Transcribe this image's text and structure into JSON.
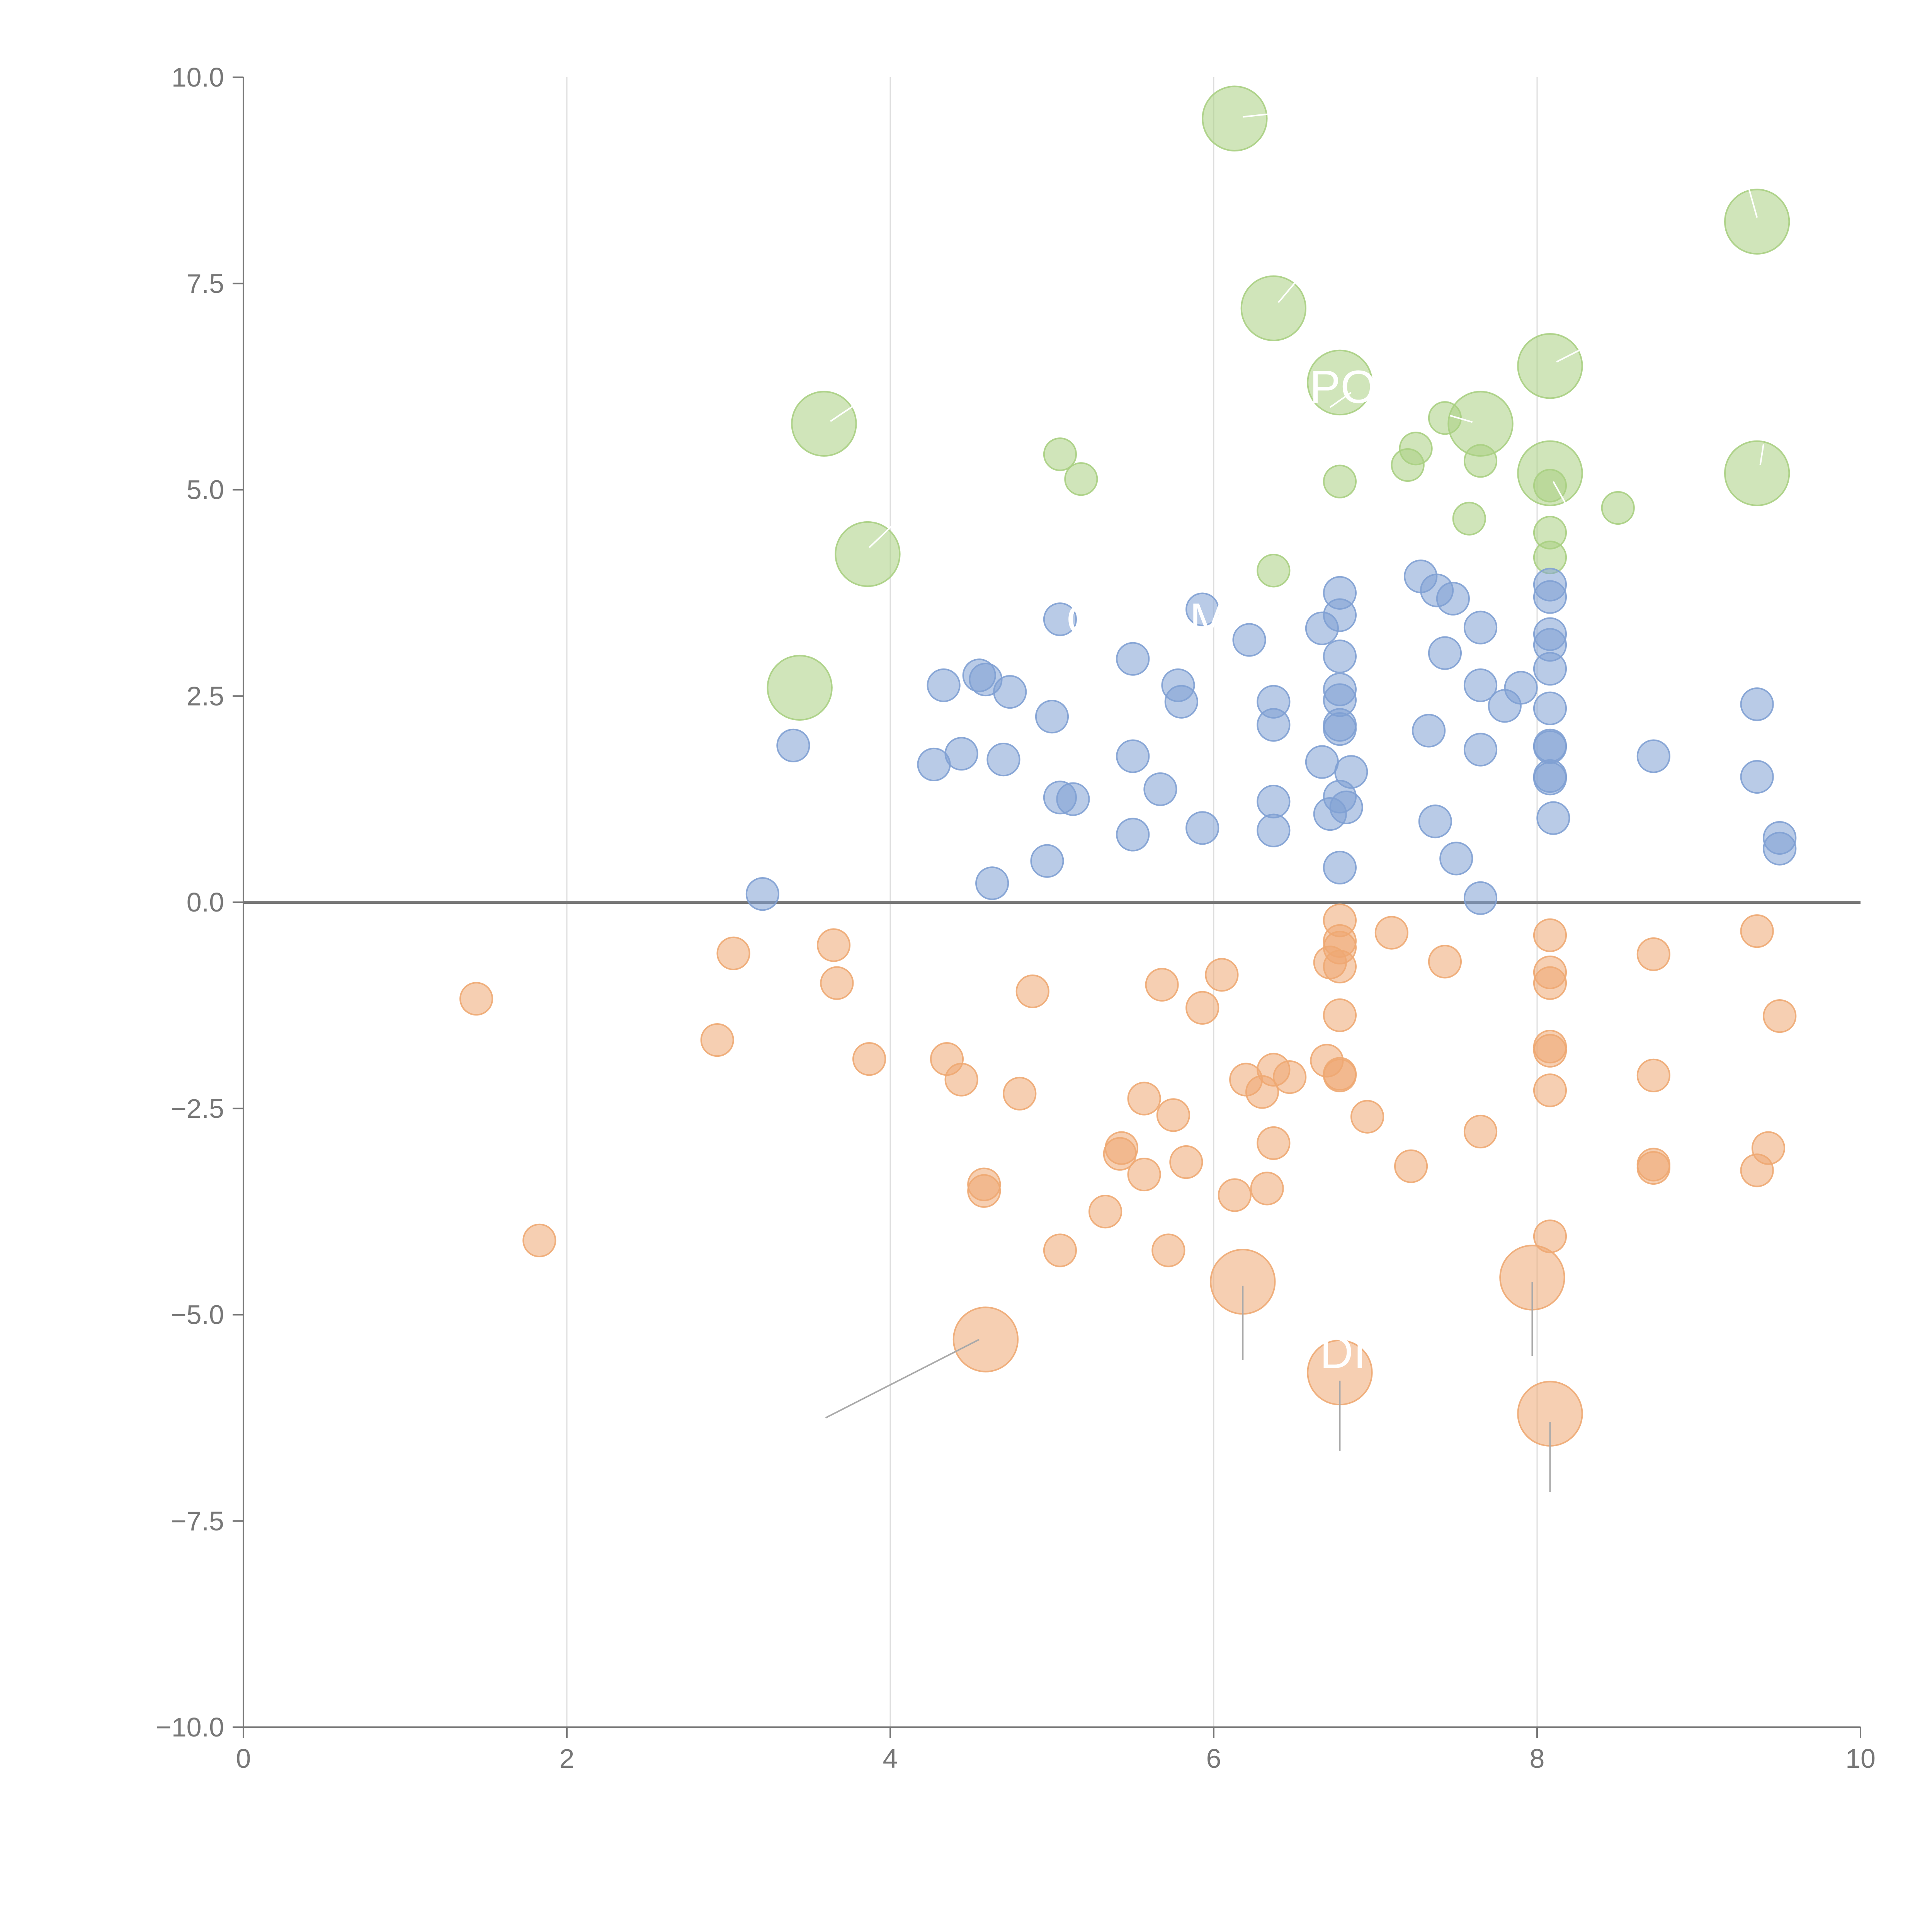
{
  "chart_data": {
    "type": "scatter",
    "title": "",
    "xlabel": "",
    "ylabel": "",
    "xlim": [
      0,
      10
    ],
    "ylim": [
      -10,
      10
    ],
    "x_ticks": [
      "0",
      "2",
      "4",
      "6",
      "8",
      "10"
    ],
    "y_ticks": [
      "10.0",
      "7.5",
      "5.0",
      "2.5",
      "0.0",
      "−2.5",
      "−5.0",
      "−7.5",
      "−10.0"
    ],
    "grid": "vertical",
    "reference_line_y": 0,
    "colors": {
      "green": "#a9cf82",
      "blue": "#7fa0d3",
      "orange": "#eea872"
    },
    "series": [
      {
        "color": "green",
        "points": [
          [
            6.13,
            9.5,
            1.6
          ],
          [
            9.36,
            8.25,
            1.6
          ],
          [
            6.37,
            7.2,
            1.6
          ],
          [
            8.08,
            6.5,
            1.6
          ],
          [
            6.78,
            6.3,
            1.6
          ],
          [
            7.65,
            5.8,
            1.6
          ],
          [
            3.59,
            5.8,
            1.6
          ],
          [
            8.08,
            5.2,
            1.6
          ],
          [
            9.36,
            5.2,
            1.6
          ],
          [
            3.86,
            4.22,
            1.6
          ],
          [
            3.44,
            2.6,
            1.6
          ],
          [
            7.43,
            5.87,
            0.8
          ],
          [
            7.25,
            5.5,
            0.8
          ],
          [
            7.2,
            5.3,
            0.8
          ],
          [
            5.05,
            5.43,
            0.8
          ],
          [
            5.18,
            5.13,
            0.8
          ],
          [
            6.78,
            5.1,
            0.8
          ],
          [
            7.65,
            5.35,
            0.8
          ],
          [
            8.08,
            5.05,
            0.8
          ],
          [
            8.5,
            4.78,
            0.8
          ],
          [
            7.58,
            4.65,
            0.8
          ],
          [
            8.08,
            4.48,
            0.8
          ],
          [
            8.08,
            4.18,
            0.8
          ],
          [
            6.37,
            4.02,
            0.8
          ]
        ]
      },
      {
        "color": "blue",
        "points": [
          [
            6.78,
            3.75,
            0.8
          ],
          [
            7.28,
            3.95,
            0.8
          ],
          [
            7.38,
            3.78,
            0.8
          ],
          [
            7.48,
            3.68,
            0.8
          ],
          [
            8.08,
            3.85,
            0.8
          ],
          [
            8.08,
            3.7,
            0.8
          ],
          [
            5.05,
            3.43,
            0.8
          ],
          [
            5.93,
            3.55,
            0.8
          ],
          [
            6.78,
            3.48,
            0.8
          ],
          [
            6.67,
            3.32,
            0.8
          ],
          [
            7.65,
            3.33,
            0.8
          ],
          [
            6.22,
            3.18,
            0.8
          ],
          [
            8.08,
            3.25,
            0.8
          ],
          [
            8.08,
            3.12,
            0.8
          ],
          [
            7.43,
            3.02,
            0.8
          ],
          [
            6.78,
            2.98,
            0.8
          ],
          [
            5.5,
            2.95,
            0.8
          ],
          [
            8.08,
            2.83,
            0.8
          ],
          [
            4.55,
            2.75,
            0.8
          ],
          [
            4.59,
            2.7,
            0.8
          ],
          [
            4.33,
            2.63,
            0.8
          ],
          [
            4.74,
            2.55,
            0.8
          ],
          [
            5.78,
            2.63,
            0.8
          ],
          [
            6.78,
            2.58,
            0.8
          ],
          [
            7.65,
            2.63,
            0.8
          ],
          [
            7.9,
            2.6,
            0.8
          ],
          [
            5.8,
            2.43,
            0.8
          ],
          [
            6.37,
            2.43,
            0.8
          ],
          [
            6.78,
            2.45,
            0.8
          ],
          [
            7.8,
            2.38,
            0.8
          ],
          [
            8.08,
            2.35,
            0.8
          ],
          [
            9.36,
            2.4,
            0.8
          ],
          [
            5.0,
            2.25,
            0.8
          ],
          [
            6.37,
            2.15,
            0.8
          ],
          [
            6.78,
            2.1,
            0.8
          ],
          [
            6.78,
            2.15,
            0.8
          ],
          [
            7.33,
            2.08,
            0.8
          ],
          [
            3.4,
            1.9,
            0.8
          ],
          [
            8.08,
            1.9,
            0.8
          ],
          [
            8.08,
            1.88,
            0.8
          ],
          [
            7.65,
            1.85,
            0.8
          ],
          [
            4.44,
            1.8,
            0.8
          ],
          [
            4.27,
            1.67,
            0.8
          ],
          [
            4.7,
            1.73,
            0.8
          ],
          [
            5.5,
            1.77,
            0.8
          ],
          [
            6.67,
            1.7,
            0.8
          ],
          [
            8.72,
            1.77,
            0.8
          ],
          [
            6.85,
            1.58,
            0.8
          ],
          [
            8.08,
            1.53,
            0.8
          ],
          [
            8.08,
            1.5,
            0.8
          ],
          [
            9.36,
            1.52,
            0.8
          ],
          [
            5.67,
            1.37,
            0.8
          ],
          [
            5.05,
            1.27,
            0.8
          ],
          [
            5.13,
            1.25,
            0.8
          ],
          [
            6.37,
            1.22,
            0.8
          ],
          [
            6.78,
            1.28,
            0.8
          ],
          [
            6.82,
            1.15,
            0.8
          ],
          [
            6.72,
            1.07,
            0.8
          ],
          [
            7.37,
            0.98,
            0.8
          ],
          [
            8.1,
            1.02,
            0.8
          ],
          [
            5.93,
            0.9,
            0.8
          ],
          [
            5.5,
            0.82,
            0.8
          ],
          [
            6.37,
            0.87,
            0.8
          ],
          [
            9.5,
            0.78,
            0.8
          ],
          [
            9.5,
            0.65,
            0.8
          ],
          [
            7.5,
            0.53,
            0.8
          ],
          [
            4.97,
            0.5,
            0.8
          ],
          [
            6.78,
            0.42,
            0.8
          ],
          [
            4.63,
            0.23,
            0.8
          ],
          [
            3.21,
            0.1,
            0.8
          ],
          [
            7.65,
            0.05,
            0.8
          ]
        ]
      },
      {
        "color": "orange",
        "points": [
          [
            6.78,
            -0.22,
            0.8
          ],
          [
            7.1,
            -0.37,
            0.8
          ],
          [
            8.08,
            -0.4,
            0.8
          ],
          [
            9.36,
            -0.35,
            0.8
          ],
          [
            3.65,
            -0.52,
            0.8
          ],
          [
            6.78,
            -0.47,
            0.8
          ],
          [
            6.78,
            -0.55,
            0.8
          ],
          [
            3.03,
            -0.62,
            0.8
          ],
          [
            8.72,
            -0.63,
            0.8
          ],
          [
            6.72,
            -0.73,
            0.8
          ],
          [
            7.43,
            -0.72,
            0.8
          ],
          [
            6.78,
            -0.78,
            0.8
          ],
          [
            8.08,
            -0.85,
            0.8
          ],
          [
            6.05,
            -0.88,
            0.8
          ],
          [
            3.67,
            -0.98,
            0.8
          ],
          [
            5.68,
            -1.0,
            0.8
          ],
          [
            8.08,
            -0.98,
            0.8
          ],
          [
            4.88,
            -1.08,
            0.8
          ],
          [
            1.44,
            -1.17,
            0.8
          ],
          [
            5.93,
            -1.28,
            0.8
          ],
          [
            6.78,
            -1.37,
            0.8
          ],
          [
            9.5,
            -1.38,
            0.8
          ],
          [
            2.93,
            -1.67,
            0.8
          ],
          [
            8.08,
            -1.75,
            0.8
          ],
          [
            8.08,
            -1.8,
            0.8
          ],
          [
            3.87,
            -1.9,
            0.8
          ],
          [
            4.35,
            -1.9,
            0.8
          ],
          [
            6.7,
            -1.92,
            0.8
          ],
          [
            6.78,
            -2.08,
            0.8
          ],
          [
            6.78,
            -2.1,
            0.8
          ],
          [
            6.37,
            -2.03,
            0.8
          ],
          [
            6.47,
            -2.12,
            0.8
          ],
          [
            6.2,
            -2.15,
            0.8
          ],
          [
            8.72,
            -2.1,
            0.8
          ],
          [
            4.44,
            -2.15,
            0.8
          ],
          [
            6.3,
            -2.3,
            0.8
          ],
          [
            8.08,
            -2.28,
            0.8
          ],
          [
            4.8,
            -2.32,
            0.8
          ],
          [
            5.57,
            -2.38,
            0.8
          ],
          [
            5.75,
            -2.58,
            0.8
          ],
          [
            6.95,
            -2.6,
            0.8
          ],
          [
            7.65,
            -2.78,
            0.8
          ],
          [
            6.37,
            -2.92,
            0.8
          ],
          [
            5.43,
            -2.98,
            0.8
          ],
          [
            5.42,
            -3.05,
            0.8
          ],
          [
            9.43,
            -2.98,
            0.8
          ],
          [
            5.83,
            -3.15,
            0.8
          ],
          [
            7.22,
            -3.2,
            0.8
          ],
          [
            8.72,
            -3.18,
            0.8
          ],
          [
            8.72,
            -3.22,
            0.8
          ],
          [
            9.36,
            -3.25,
            0.8
          ],
          [
            5.57,
            -3.3,
            0.8
          ],
          [
            4.58,
            -3.42,
            0.8
          ],
          [
            4.58,
            -3.5,
            0.8
          ],
          [
            6.33,
            -3.47,
            0.8
          ],
          [
            6.13,
            -3.55,
            0.8
          ],
          [
            5.33,
            -3.75,
            0.8
          ],
          [
            1.83,
            -4.1,
            0.8
          ],
          [
            8.08,
            -4.05,
            0.8
          ],
          [
            5.05,
            -4.22,
            0.8
          ],
          [
            5.72,
            -4.22,
            0.8
          ],
          [
            6.18,
            -4.6,
            1.6
          ],
          [
            7.97,
            -4.55,
            1.6
          ],
          [
            4.59,
            -5.3,
            1.6
          ],
          [
            6.78,
            -5.7,
            1.6
          ],
          [
            8.08,
            -6.2,
            1.6
          ]
        ]
      }
    ],
    "annotations": [
      {
        "text": "PO",
        "x": 6.8,
        "y": 6.25
      },
      {
        "text": "O",
        "x": 5.2,
        "y": 3.43
      },
      {
        "text": "M",
        "x": 5.97,
        "y": 3.43
      },
      {
        "text": "DI",
        "x": 6.8,
        "y": -5.45
      }
    ],
    "leader_lines": [
      {
        "x1": 6.18,
        "y1": 9.52,
        "x2": 6.37,
        "y2": 9.56,
        "color": "#ffffff"
      },
      {
        "x1": 9.36,
        "y1": 8.3,
        "x2": 9.31,
        "y2": 8.65,
        "color": "#ffffff"
      },
      {
        "x1": 6.4,
        "y1": 7.27,
        "x2": 6.52,
        "y2": 7.55,
        "color": "#ffffff"
      },
      {
        "x1": 8.12,
        "y1": 6.55,
        "x2": 8.27,
        "y2": 6.7,
        "color": "#ffffff"
      },
      {
        "x1": 6.72,
        "y1": 6.0,
        "x2": 6.85,
        "y2": 6.18,
        "color": "#ffffff"
      },
      {
        "x1": 7.6,
        "y1": 5.82,
        "x2": 7.46,
        "y2": 5.9,
        "color": "#ffffff"
      },
      {
        "x1": 3.63,
        "y1": 5.83,
        "x2": 3.82,
        "y2": 6.08,
        "color": "#ffffff"
      },
      {
        "x1": 8.1,
        "y1": 5.1,
        "x2": 8.2,
        "y2": 4.75,
        "color": "#ffffff"
      },
      {
        "x1": 9.38,
        "y1": 5.3,
        "x2": 9.4,
        "y2": 5.55,
        "color": "#ffffff"
      },
      {
        "x1": 3.87,
        "y1": 4.3,
        "x2": 4.02,
        "y2": 4.58,
        "color": "#ffffff"
      },
      {
        "x1": 6.18,
        "y1": -4.65,
        "x2": 6.18,
        "y2": -5.55,
        "color": "#aaaaaa"
      },
      {
        "x1": 7.97,
        "y1": -4.6,
        "x2": 7.97,
        "y2": -5.5,
        "color": "#aaaaaa"
      },
      {
        "x1": 4.55,
        "y1": -5.3,
        "x2": 3.6,
        "y2": -6.25,
        "color": "#aaaaaa"
      },
      {
        "x1": 6.78,
        "y1": -5.8,
        "x2": 6.78,
        "y2": -6.65,
        "color": "#aaaaaa"
      },
      {
        "x1": 8.08,
        "y1": -6.3,
        "x2": 8.08,
        "y2": -7.15,
        "color": "#aaaaaa"
      }
    ]
  }
}
